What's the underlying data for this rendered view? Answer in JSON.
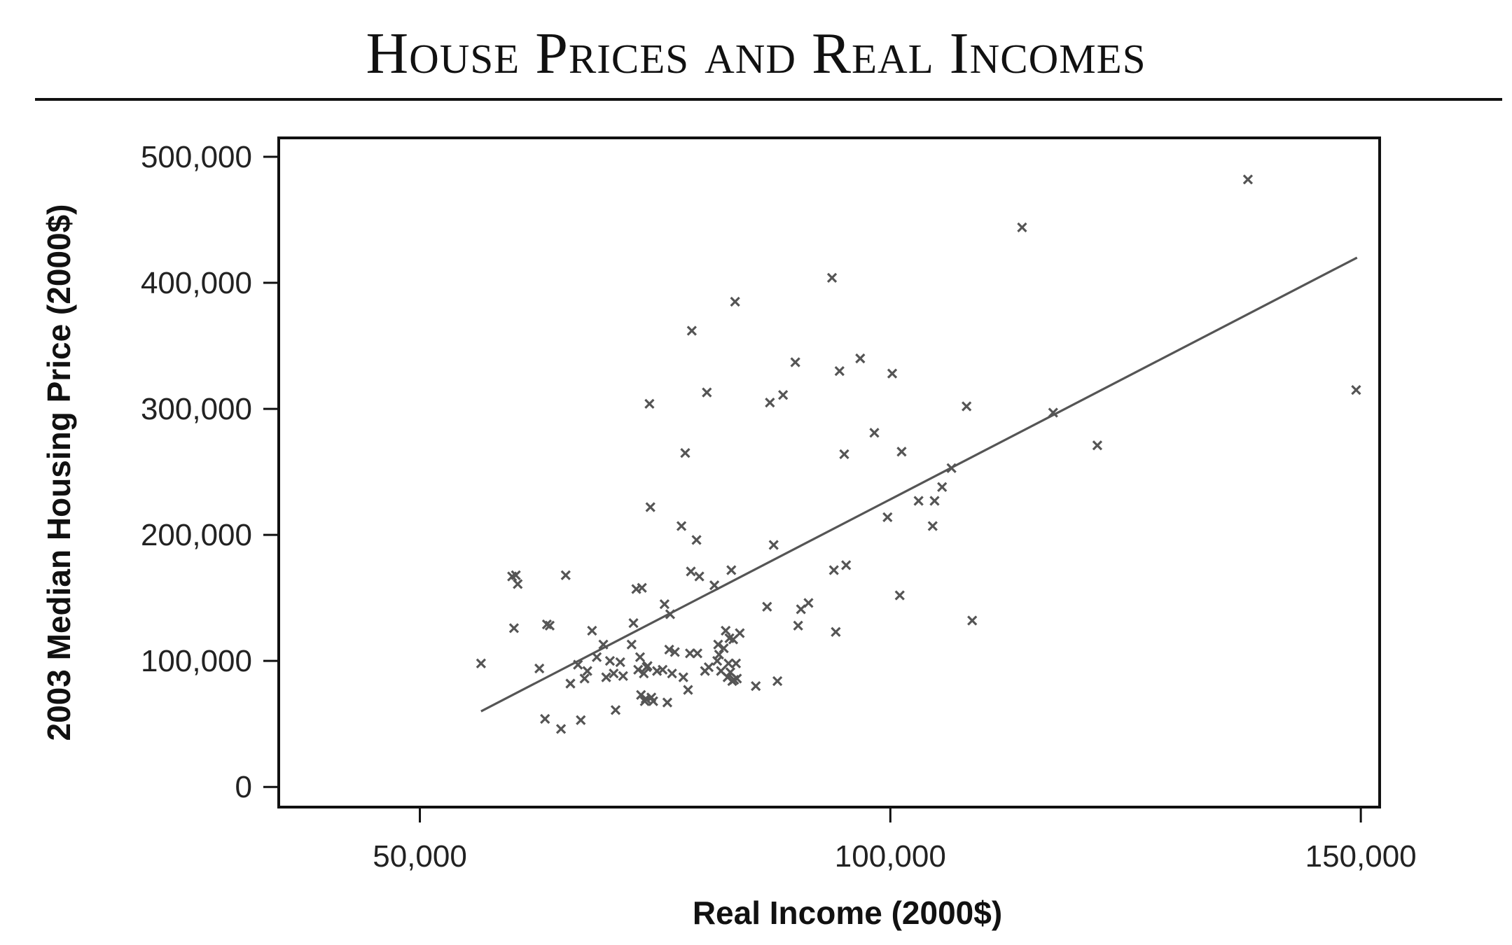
{
  "chart_data": {
    "type": "scatter",
    "title": "House Prices and Real Incomes",
    "xlabel": "Real Income (2000$)",
    "ylabel": "2003 Median Housing Price (2000$)",
    "xlim": [
      35000,
      152000
    ],
    "ylim": [
      -16000,
      515000
    ],
    "xticks": [
      50000,
      100000,
      150000
    ],
    "xtick_labels": [
      "50,000",
      "100,000",
      "150,000"
    ],
    "yticks": [
      0,
      100000,
      200000,
      300000,
      400000,
      500000
    ],
    "ytick_labels": [
      "0",
      "100,000",
      "200,000",
      "300,000",
      "400,000",
      "500,000"
    ],
    "grid": false,
    "marker": "x",
    "color": "#555555",
    "trendline": {
      "x": [
        56500,
        149600
      ],
      "y": [
        60000,
        420000
      ]
    },
    "points": [
      [
        56500,
        98000
      ],
      [
        59800,
        167000
      ],
      [
        60000,
        126000
      ],
      [
        60200,
        168000
      ],
      [
        60400,
        161000
      ],
      [
        62700,
        94000
      ],
      [
        63300,
        54000
      ],
      [
        63500,
        129000
      ],
      [
        63800,
        128000
      ],
      [
        65000,
        46000
      ],
      [
        65500,
        168000
      ],
      [
        66000,
        82000
      ],
      [
        66800,
        97000
      ],
      [
        67100,
        53000
      ],
      [
        67500,
        86000
      ],
      [
        67800,
        92000
      ],
      [
        68300,
        124000
      ],
      [
        68800,
        103000
      ],
      [
        69500,
        113000
      ],
      [
        69800,
        87000
      ],
      [
        70200,
        100000
      ],
      [
        70600,
        90000
      ],
      [
        70800,
        61000
      ],
      [
        71300,
        99000
      ],
      [
        71600,
        88000
      ],
      [
        72500,
        113000
      ],
      [
        72700,
        130000
      ],
      [
        73000,
        157000
      ],
      [
        73200,
        93000
      ],
      [
        73400,
        103000
      ],
      [
        73500,
        73000
      ],
      [
        73600,
        158000
      ],
      [
        73800,
        90000
      ],
      [
        73900,
        68000
      ],
      [
        74000,
        70000
      ],
      [
        74100,
        95000
      ],
      [
        74200,
        96000
      ],
      [
        74400,
        304000
      ],
      [
        74500,
        222000
      ],
      [
        74600,
        71000
      ],
      [
        74800,
        68000
      ],
      [
        75200,
        92000
      ],
      [
        75800,
        93000
      ],
      [
        76000,
        145000
      ],
      [
        76300,
        67000
      ],
      [
        76500,
        109000
      ],
      [
        76600,
        137000
      ],
      [
        76800,
        90000
      ],
      [
        77100,
        107000
      ],
      [
        77800,
        207000
      ],
      [
        78000,
        87000
      ],
      [
        78200,
        265000
      ],
      [
        78500,
        77000
      ],
      [
        78700,
        106000
      ],
      [
        78800,
        171000
      ],
      [
        78900,
        362000
      ],
      [
        79400,
        196000
      ],
      [
        79500,
        106000
      ],
      [
        79700,
        167000
      ],
      [
        80300,
        92000
      ],
      [
        80500,
        313000
      ],
      [
        80700,
        95000
      ],
      [
        81300,
        160000
      ],
      [
        81600,
        100000
      ],
      [
        81700,
        113000
      ],
      [
        81800,
        105000
      ],
      [
        82000,
        92000
      ],
      [
        82300,
        110000
      ],
      [
        82500,
        124000
      ],
      [
        82700,
        87000
      ],
      [
        82800,
        98000
      ],
      [
        82900,
        118000
      ],
      [
        83000,
        91000
      ],
      [
        83100,
        172000
      ],
      [
        83200,
        84000
      ],
      [
        83300,
        117000
      ],
      [
        83400,
        85000
      ],
      [
        83500,
        385000
      ],
      [
        83600,
        98000
      ],
      [
        83700,
        86000
      ],
      [
        84000,
        122000
      ],
      [
        85700,
        80000
      ],
      [
        86900,
        143000
      ],
      [
        87200,
        305000
      ],
      [
        87600,
        192000
      ],
      [
        88000,
        84000
      ],
      [
        88600,
        311000
      ],
      [
        89900,
        337000
      ],
      [
        90200,
        128000
      ],
      [
        90500,
        141000
      ],
      [
        91300,
        146000
      ],
      [
        93800,
        404000
      ],
      [
        94000,
        172000
      ],
      [
        94200,
        123000
      ],
      [
        94600,
        330000
      ],
      [
        95100,
        264000
      ],
      [
        95300,
        176000
      ],
      [
        96800,
        340000
      ],
      [
        98300,
        281000
      ],
      [
        99700,
        214000
      ],
      [
        100200,
        328000
      ],
      [
        101000,
        152000
      ],
      [
        101200,
        266000
      ],
      [
        103000,
        227000
      ],
      [
        104500,
        207000
      ],
      [
        104700,
        227000
      ],
      [
        105500,
        238000
      ],
      [
        106500,
        253000
      ],
      [
        108100,
        302000
      ],
      [
        108700,
        132000
      ],
      [
        114000,
        444000
      ],
      [
        117300,
        297000
      ],
      [
        122000,
        271000
      ],
      [
        138000,
        482000
      ],
      [
        149500,
        315000
      ]
    ]
  }
}
